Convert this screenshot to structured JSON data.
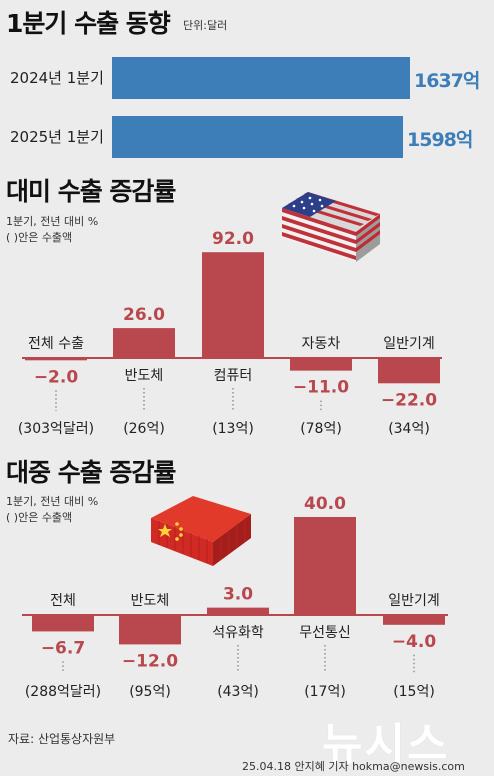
{
  "header": {
    "title": "1분기 수출 동향",
    "unit": "단위:달러"
  },
  "totals": [
    {
      "label": "2024년 1분기",
      "value": 1637,
      "display": "1637억"
    },
    {
      "label": "2025년 1분기",
      "value": 1598,
      "display": "1598억"
    }
  ],
  "us_section": {
    "title": "대미 수출 증감률",
    "note1": "1분기, 전년 대비 %",
    "note2": "( )안은 수출액"
  },
  "china_section": {
    "title": "대중 수출 증감률",
    "note1": "1분기, 전년 대비 %",
    "note2": "( )안은 수출액"
  },
  "chart_data": [
    {
      "type": "bar",
      "title": "대미 수출 증감률",
      "categories": [
        "전체 수출",
        "반도체",
        "컴퓨터",
        "자동차",
        "일반기계"
      ],
      "values": [
        -2.0,
        26.0,
        92.0,
        -11.0,
        -22.0
      ],
      "value_labels": [
        "−2.0",
        "26.0",
        "92.0",
        "−11.0",
        "−22.0"
      ],
      "export_amounts": [
        "(303억달러)",
        "(26억)",
        "(13억)",
        "(78억)",
        "(34억)"
      ],
      "ylim": [
        -22,
        92
      ],
      "bar_color": "#b8484d"
    },
    {
      "type": "bar",
      "title": "대중 수출 증감률",
      "categories": [
        "전체",
        "반도체",
        "석유화학",
        "무선통신",
        "일반기계"
      ],
      "values": [
        -6.7,
        -12.0,
        3.0,
        40.0,
        -4.0
      ],
      "value_labels": [
        "−6.7",
        "−12.0",
        "3.0",
        "40.0",
        "−4.0"
      ],
      "export_amounts": [
        "(288억달러)",
        "(95억)",
        "(43억)",
        "(17억)",
        "(15억)"
      ],
      "ylim": [
        -12,
        40
      ],
      "bar_color": "#b8484d"
    }
  ],
  "footer": {
    "source": "자료: 산업통상자원부",
    "logo": "뉴시스",
    "credit": "25.04.18 안지혜 기자 hokma@newsis.com"
  },
  "colors": {
    "total_bar": "#3d7eb8",
    "rate_bar": "#b8484d",
    "axis": "#b8484d",
    "background": "#ececec"
  },
  "icons": [
    "us-flag-container-icon",
    "china-flag-container-icon"
  ]
}
